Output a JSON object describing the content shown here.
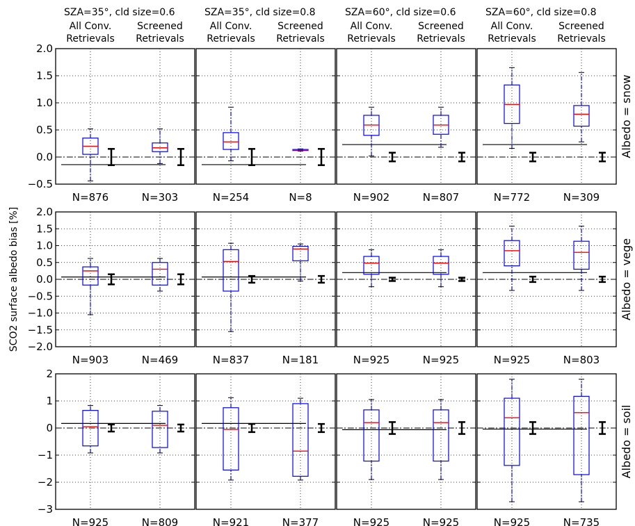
{
  "chart_data": {
    "type": "boxplot-grid",
    "ylabel": "SCO2 surface albedo bias [%]",
    "columns": [
      {
        "title": "SZA=35°, cld size=0.6",
        "box_labels": [
          "All Conv.\nRetrievals",
          "Screened\nRetrievals"
        ]
      },
      {
        "title": "SZA=35°, cld size=0.8",
        "box_labels": [
          "All Conv.\nRetrievals",
          "Screened\nRetrievals"
        ]
      },
      {
        "title": "SZA=60°, cld size=0.6",
        "box_labels": [
          "All Conv.\nRetrievals",
          "Screened\nRetrievals"
        ]
      },
      {
        "title": "SZA=60°, cld size=0.8",
        "box_labels": [
          "All Conv.\nRetrievals",
          "Screened\nRetrievals"
        ]
      }
    ],
    "rows": [
      {
        "label": "Albedo = snow",
        "ylim": [
          -0.5,
          2.0
        ],
        "yticks": [
          "2.0",
          "1.5",
          "1.0",
          "0.5",
          "0.0",
          "−0.5"
        ],
        "ytick_values": [
          2.0,
          1.5,
          1.0,
          0.5,
          0.0,
          -0.5
        ],
        "panels": [
          {
            "ref_line": -0.14,
            "err_lo": -0.15,
            "err_hi": 0.15,
            "boxes": [
              {
                "N": "N=876",
                "whislo": -0.44,
                "q1": 0.05,
                "med": 0.2,
                "q3": 0.35,
                "whishi": 0.52
              },
              {
                "N": "N=303",
                "whislo": -0.12,
                "q1": 0.1,
                "med": 0.17,
                "q3": 0.26,
                "whishi": 0.52
              }
            ]
          },
          {
            "ref_line": -0.14,
            "err_lo": -0.15,
            "err_hi": 0.15,
            "boxes": [
              {
                "N": "N=254",
                "whislo": -0.07,
                "q1": 0.14,
                "med": 0.28,
                "q3": 0.45,
                "whishi": 0.92
              },
              {
                "N": "N=8",
                "whislo": 0.11,
                "q1": 0.12,
                "med": 0.13,
                "q3": 0.14,
                "whishi": 0.15
              }
            ]
          },
          {
            "ref_line": 0.23,
            "err_lo": -0.08,
            "err_hi": 0.08,
            "boxes": [
              {
                "N": "N=902",
                "whislo": 0.02,
                "q1": 0.4,
                "med": 0.59,
                "q3": 0.77,
                "whishi": 0.92
              },
              {
                "N": "N=807",
                "whislo": 0.18,
                "q1": 0.42,
                "med": 0.59,
                "q3": 0.77,
                "whishi": 0.92
              }
            ]
          },
          {
            "ref_line": 0.23,
            "err_lo": -0.08,
            "err_hi": 0.08,
            "boxes": [
              {
                "N": "N=772",
                "whislo": 0.16,
                "q1": 0.62,
                "med": 0.97,
                "q3": 1.33,
                "whishi": 1.65
              },
              {
                "N": "N=309",
                "whislo": 0.28,
                "q1": 0.57,
                "med": 0.79,
                "q3": 0.95,
                "whishi": 1.56
              }
            ]
          }
        ]
      },
      {
        "label": "Albedo = vege",
        "ylim": [
          -2.0,
          2.0
        ],
        "yticks": [
          "2.0",
          "1.5",
          "1.0",
          "0.5",
          "0.0",
          "−0.5",
          "−1.0",
          "−1.5",
          "−2.0"
        ],
        "ytick_values": [
          2.0,
          1.5,
          1.0,
          0.5,
          0.0,
          -0.5,
          -1.0,
          -1.5,
          -2.0
        ],
        "panels": [
          {
            "ref_line": 0.07,
            "err_lo": -0.15,
            "err_hi": 0.15,
            "boxes": [
              {
                "N": "N=903",
                "whislo": -1.05,
                "q1": -0.17,
                "med": 0.25,
                "q3": 0.37,
                "whishi": 0.62
              },
              {
                "N": "N=469",
                "whislo": -0.35,
                "q1": -0.17,
                "med": 0.3,
                "q3": 0.5,
                "whishi": 0.62
              }
            ]
          },
          {
            "ref_line": 0.07,
            "err_lo": -0.1,
            "err_hi": 0.1,
            "boxes": [
              {
                "N": "N=837",
                "whislo": -1.55,
                "q1": -0.35,
                "med": 0.53,
                "q3": 0.88,
                "whishi": 1.07
              },
              {
                "N": "N=181",
                "whislo": -0.05,
                "q1": 0.55,
                "med": 0.9,
                "q3": 0.98,
                "whishi": 1.05
              }
            ]
          },
          {
            "ref_line": 0.2,
            "err_lo": -0.05,
            "err_hi": 0.05,
            "boxes": [
              {
                "N": "N=925",
                "whislo": -0.22,
                "q1": 0.15,
                "med": 0.48,
                "q3": 0.68,
                "whishi": 0.88
              },
              {
                "N": "N=925",
                "whislo": -0.22,
                "q1": 0.15,
                "med": 0.48,
                "q3": 0.68,
                "whishi": 0.88
              }
            ]
          },
          {
            "ref_line": 0.2,
            "err_lo": -0.08,
            "err_hi": 0.08,
            "boxes": [
              {
                "N": "N=925",
                "whislo": -0.33,
                "q1": 0.4,
                "med": 0.85,
                "q3": 1.15,
                "whishi": 1.58
              },
              {
                "N": "N=803",
                "whislo": -0.33,
                "q1": 0.3,
                "med": 0.8,
                "q3": 1.13,
                "whishi": 1.58
              }
            ]
          }
        ]
      },
      {
        "label": "Albedo = soil",
        "ylim": [
          -3,
          2
        ],
        "yticks": [
          "2",
          "1",
          "0",
          "−1",
          "−2",
          "−3"
        ],
        "ytick_values": [
          2,
          1,
          0,
          -1,
          -2,
          -3
        ],
        "panels": [
          {
            "ref_line": 0.17,
            "err_lo": -0.13,
            "err_hi": 0.13,
            "boxes": [
              {
                "N": "N=925",
                "whislo": -0.92,
                "q1": -0.66,
                "med": 0.05,
                "q3": 0.65,
                "whishi": 0.83
              },
              {
                "N": "N=809",
                "whislo": -0.92,
                "q1": -0.72,
                "med": 0.1,
                "q3": 0.62,
                "whishi": 0.83
              }
            ]
          },
          {
            "ref_line": 0.17,
            "err_lo": -0.15,
            "err_hi": 0.15,
            "boxes": [
              {
                "N": "N=921",
                "whislo": -1.92,
                "q1": -1.55,
                "med": -0.05,
                "q3": 0.75,
                "whishi": 1.12
              },
              {
                "N": "N=377",
                "whislo": -1.92,
                "q1": -1.78,
                "med": -0.85,
                "q3": 0.9,
                "whishi": 1.1
              }
            ]
          },
          {
            "ref_line": -0.06,
            "err_lo": -0.22,
            "err_hi": 0.22,
            "boxes": [
              {
                "N": "N=925",
                "whislo": -1.9,
                "q1": -1.22,
                "med": 0.2,
                "q3": 0.67,
                "whishi": 1.05
              },
              {
                "N": "N=925",
                "whislo": -1.9,
                "q1": -1.22,
                "med": 0.2,
                "q3": 0.67,
                "whishi": 1.05
              }
            ]
          },
          {
            "ref_line": -0.04,
            "err_lo": -0.22,
            "err_hi": 0.22,
            "boxes": [
              {
                "N": "N=925",
                "whislo": -2.72,
                "q1": -1.38,
                "med": 0.38,
                "q3": 1.1,
                "whishi": 1.8
              },
              {
                "N": "N=735",
                "whislo": -2.72,
                "q1": -1.72,
                "med": 0.57,
                "q3": 1.17,
                "whishi": 1.8
              }
            ]
          }
        ]
      }
    ],
    "grid": true,
    "colors": {
      "box": "#0000ff",
      "median": "#ff0000",
      "whisker": "#0000ff",
      "ref_line": "#000000",
      "errbar": "#000000"
    }
  }
}
